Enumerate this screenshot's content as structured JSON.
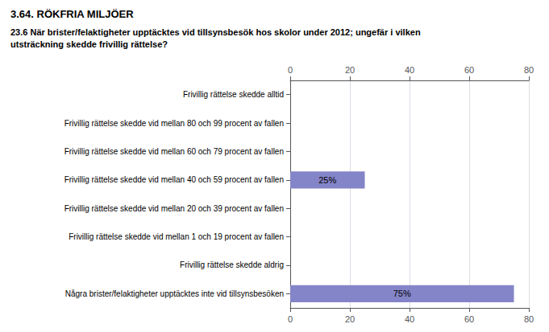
{
  "chart_data": {
    "type": "bar",
    "orientation": "horizontal",
    "title": "3.64. RÖKFRIA MILJÖER",
    "subtitle": "23.6 När brister/felaktigheter upptäcktes vid tillsynsbesök hos skolor under 2012; ungefär i vilken\nutsträckning skedde frivillig rättelse?",
    "categories": [
      "Frivillig rättelse skedde alltid",
      "Frivillig rättelse skedde vid mellan 80 och 99 procent av fallen",
      "Frivillig rättelse skedde vid mellan 60 och 79 procent av fallen",
      "Frivillig rättelse skedde vid mellan 40 och 59 procent av fallen",
      "Frivillig rättelse skedde vid mellan 20 och 39 procent av fallen",
      "Frivillig rättelse skedde vid mellan 1 och 19 procent av fallen",
      "Frivillig rättelse skedde aldrig",
      "Några brister/felaktigheter upptäcktes inte vid tillsynsbesöken"
    ],
    "values": [
      0,
      0,
      0,
      25,
      0,
      0,
      0,
      75
    ],
    "value_labels": [
      null,
      null,
      null,
      "25%",
      null,
      null,
      null,
      "75%"
    ],
    "data_labels": true,
    "color": "#8484c8",
    "xlim": [
      0,
      80
    ],
    "xticks": [
      0,
      20,
      40,
      60,
      80
    ],
    "grid": true
  }
}
